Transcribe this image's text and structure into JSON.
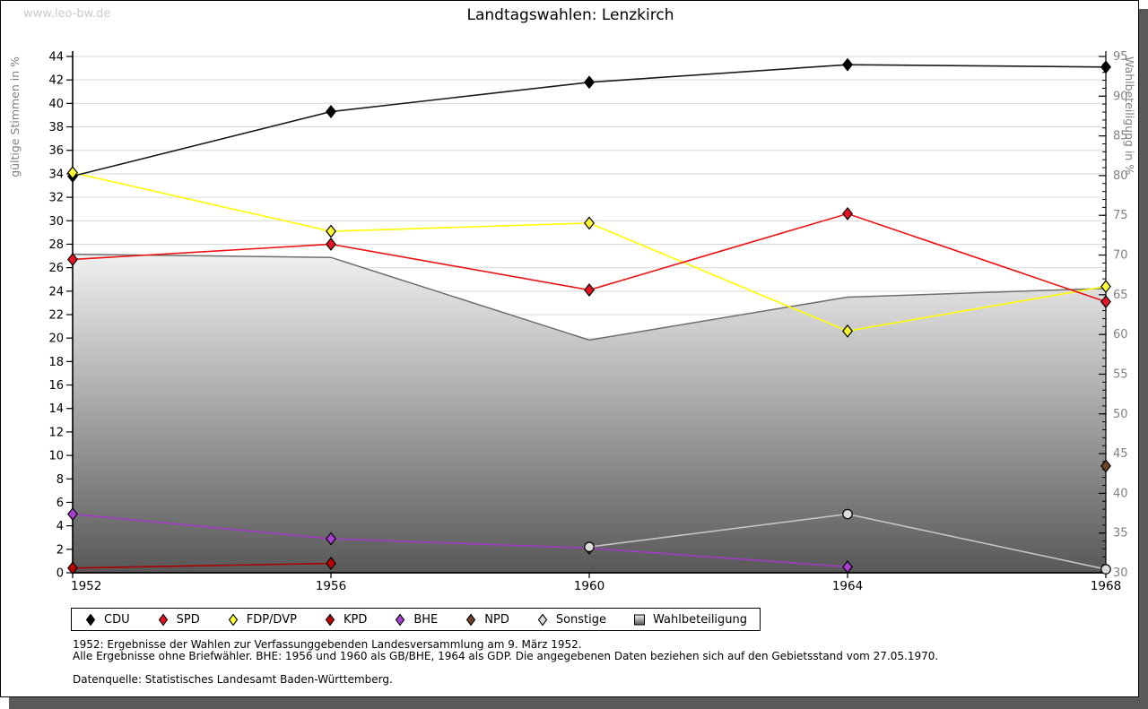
{
  "page": {
    "watermark": "www.leo-bw.de",
    "title": "Landtagswahlen: Lenzkirch"
  },
  "chart_data": {
    "type": "line",
    "title": "Landtagswahlen: Lenzkirch",
    "x_categories": [
      "1952",
      "1956",
      "1960",
      "1964",
      "1968"
    ],
    "left_axis": {
      "label": "gültige Stimmen in %",
      "min": 0,
      "max": 44,
      "tick_step": 2,
      "grid": true
    },
    "right_axis": {
      "label": "Wahlbeteiligung in %",
      "min": 30,
      "max": 95,
      "tick_step": 5,
      "minor_tick_step": 1
    },
    "legend_position": "bottom",
    "series": [
      {
        "name": "CDU",
        "axis": "left",
        "style": "line",
        "marker": "diamond",
        "line_color": "#1a1a1a",
        "marker_fill": "#000000",
        "values": [
          33.8,
          39.3,
          41.8,
          43.3,
          43.1
        ]
      },
      {
        "name": "SPD",
        "axis": "left",
        "style": "line",
        "marker": "diamond",
        "line_color": "#ee1111",
        "marker_fill": "#e81123",
        "values": [
          26.7,
          28.0,
          24.1,
          30.6,
          23.1
        ]
      },
      {
        "name": "FDP/DVP",
        "axis": "left",
        "style": "line",
        "marker": "diamond",
        "line_color": "#ffff00",
        "marker_fill": "#ffff33",
        "values": [
          34.1,
          29.1,
          29.8,
          20.6,
          24.4
        ]
      },
      {
        "name": "KPD",
        "axis": "left",
        "style": "line",
        "marker": "diamond",
        "line_color": "#aa0000",
        "marker_fill": "#c00000",
        "values": [
          0.4,
          0.8,
          null,
          null,
          null
        ]
      },
      {
        "name": "BHE",
        "axis": "left",
        "style": "line",
        "marker": "diamond",
        "line_color": "#a23bc6",
        "marker_fill": "#a93fd0",
        "values": [
          5.0,
          2.9,
          2.1,
          0.5,
          null
        ]
      },
      {
        "name": "NPD",
        "axis": "left",
        "style": "line",
        "marker": "diamond",
        "line_color": "#6b4226",
        "marker_fill": "#70402a",
        "values": [
          null,
          null,
          null,
          null,
          9.1
        ]
      },
      {
        "name": "Sonstige",
        "axis": "left",
        "style": "line",
        "marker": "circle",
        "line_color": "#c4c4c4",
        "marker_fill": "#dcdcdc",
        "values": [
          null,
          null,
          2.2,
          5.0,
          0.3
        ]
      },
      {
        "name": "Wahlbeteiligung",
        "axis": "right",
        "style": "area",
        "marker": "square",
        "line_color": "#6e6e6e",
        "marker_fill": "#c0c0c0",
        "area_gradient": [
          "#f2f2f2",
          "#585858"
        ],
        "values": [
          70.1,
          69.7,
          59.3,
          64.7,
          65.8
        ]
      }
    ]
  },
  "footnotes": {
    "line1": "1952: Ergebnisse der Wahlen zur Verfassunggebenden Landesversammlung am 9. März 1952.",
    "line2": "Alle Ergebnisse ohne Briefwähler. BHE: 1956 und 1960 als GB/BHE, 1964 als GDP. Die angegebenen Daten beziehen sich auf den Gebietsstand vom 27.05.1970.",
    "source": "Datenquelle: Statistisches Landesamt Baden-Württemberg."
  },
  "colors": {
    "shadow": "#595959",
    "grid": "#d9d9d9",
    "axis": "#000000",
    "tick_label_left": "#000000",
    "tick_label_right": "#808080",
    "axis_title": "#808080",
    "watermark": "#cccccc"
  }
}
